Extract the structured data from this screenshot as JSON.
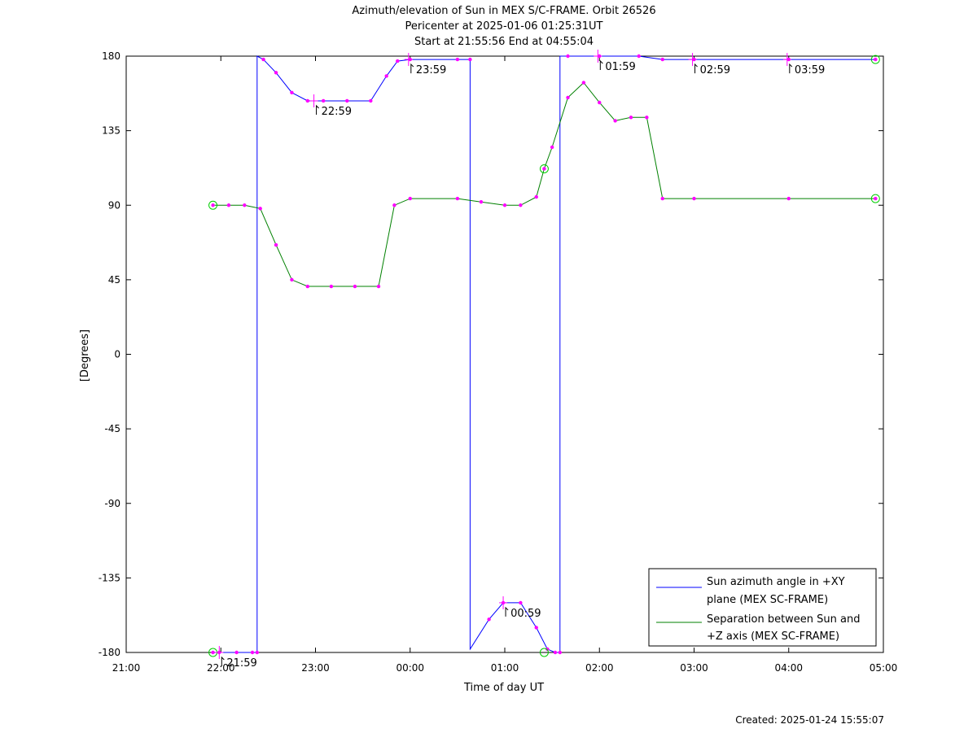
{
  "title_lines": [
    "Azimuth/elevation of Sun in MEX S/C-FRAME.  Orbit 26526",
    "Pericenter at 2025-01-06 01:25:31UT",
    "Start at 21:55:56 End at 04:55:04"
  ],
  "created": "Created: 2025-01-24 15:55:07",
  "colors": {
    "azimuth": "#0000ff",
    "separation": "#008000",
    "markers": "#ff00ff",
    "endpoints": "#00cc00"
  },
  "chart_data": {
    "type": "line",
    "xlabel": "Time of day UT",
    "ylabel": "[Degrees]",
    "xlim": [
      "21:00",
      "05:00"
    ],
    "ylim": [
      -180,
      180
    ],
    "x_ticks": [
      "21:00",
      "22:00",
      "23:00",
      "00:00",
      "01:00",
      "02:00",
      "03:00",
      "04:00",
      "05:00"
    ],
    "y_ticks": [
      180,
      135,
      90,
      45,
      0,
      -45,
      -90,
      -135,
      -180
    ],
    "grid": false,
    "legend_position": "bottom-right",
    "series": [
      {
        "name": "Sun azimuth angle in +XY plane (MEX SC-FRAME)",
        "legend_lines": [
          "Sun azimuth angle in +XY",
          "plane (MEX SC-FRAME)"
        ],
        "color": "#0000ff",
        "points": [
          [
            "21:55",
            -180
          ],
          [
            "21:59",
            -180
          ],
          [
            "22:10",
            -180
          ],
          [
            "22:20",
            -180
          ],
          [
            "22:23",
            -180
          ],
          [
            "22:23",
            180
          ],
          [
            "22:27",
            178
          ],
          [
            "22:35",
            170
          ],
          [
            "22:45",
            158
          ],
          [
            "22:55",
            153
          ],
          [
            "23:05",
            153
          ],
          [
            "23:20",
            153
          ],
          [
            "23:35",
            153
          ],
          [
            "23:45",
            168
          ],
          [
            "23:52",
            177
          ],
          [
            "24:00",
            178
          ],
          [
            "24:30",
            178
          ],
          [
            "24:38",
            178
          ],
          [
            "24:38",
            -178
          ],
          [
            "24:50",
            -160
          ],
          [
            "24:59",
            -150
          ],
          [
            "25:10",
            -150
          ],
          [
            "25:20",
            -165
          ],
          [
            "25:27",
            -178
          ],
          [
            "25:32",
            -180
          ],
          [
            "25:35",
            -180
          ],
          [
            "25:35",
            180
          ],
          [
            "25:40",
            180
          ],
          [
            "26:00",
            180
          ],
          [
            "26:25",
            180
          ],
          [
            "26:40",
            178
          ],
          [
            "27:00",
            178
          ],
          [
            "28:00",
            178
          ],
          [
            "28:55",
            178
          ]
        ]
      },
      {
        "name": "Separation between Sun and +Z axis (MEX SC-FRAME)",
        "legend_lines": [
          "Separation between Sun and",
          "+Z axis (MEX SC-FRAME)"
        ],
        "color": "#008000",
        "points": [
          [
            "21:55",
            90
          ],
          [
            "22:05",
            90
          ],
          [
            "22:15",
            90
          ],
          [
            "22:25",
            88
          ],
          [
            "22:35",
            66
          ],
          [
            "22:45",
            45
          ],
          [
            "22:55",
            41
          ],
          [
            "23:10",
            41
          ],
          [
            "23:25",
            41
          ],
          [
            "23:40",
            41
          ],
          [
            "23:50",
            90
          ],
          [
            "24:00",
            94
          ],
          [
            "24:30",
            94
          ],
          [
            "24:45",
            92
          ],
          [
            "25:00",
            90
          ],
          [
            "25:10",
            90
          ],
          [
            "25:20",
            95
          ],
          [
            "25:25",
            112
          ],
          [
            "25:30",
            125
          ],
          [
            "25:40",
            155
          ],
          [
            "25:50",
            164
          ],
          [
            "26:00",
            152
          ],
          [
            "26:10",
            141
          ],
          [
            "26:20",
            143
          ],
          [
            "26:30",
            143
          ],
          [
            "26:40",
            94
          ],
          [
            "27:00",
            94
          ],
          [
            "28:00",
            94
          ],
          [
            "28:55",
            94
          ]
        ]
      }
    ],
    "time_labels": [
      {
        "text": "21:59",
        "x": "21:59",
        "y": -180
      },
      {
        "text": "22:59",
        "x": "22:59",
        "y": 153
      },
      {
        "text": "23:59",
        "x": "23:59",
        "y": 178
      },
      {
        "text": "00:59",
        "x": "24:59",
        "y": -150
      },
      {
        "text": "01:59",
        "x": "25:59",
        "y": 180
      },
      {
        "text": "02:59",
        "x": "26:59",
        "y": 178
      },
      {
        "text": "03:59",
        "x": "27:59",
        "y": 178
      }
    ],
    "endpoint_markers": [
      {
        "x": "21:55",
        "y": 90
      },
      {
        "x": "21:55",
        "y": -180
      },
      {
        "x": "25:25",
        "y": 112
      },
      {
        "x": "25:25",
        "y": -180
      },
      {
        "x": "28:55",
        "y": 178
      },
      {
        "x": "28:55",
        "y": 94
      }
    ]
  }
}
